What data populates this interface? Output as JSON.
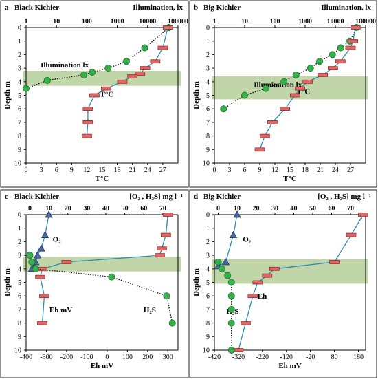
{
  "panels": [
    {
      "letter": "a",
      "name": "Black Kichier",
      "top_title": "Illumination, lx",
      "top_axis": {
        "type": "log",
        "min": 1,
        "max": 100000,
        "ticks": [
          1,
          10,
          100,
          1000,
          10000,
          100000
        ],
        "tick_labels": [
          "1",
          "10",
          "100",
          "1000",
          "10000",
          "100000"
        ]
      },
      "bottom_axis": {
        "label": "T°C",
        "min": 0,
        "max": 30,
        "ticks": [
          0,
          3,
          6,
          9,
          12,
          15,
          18,
          21,
          24,
          27
        ],
        "tick_labels": [
          "0",
          "3",
          "6",
          "9",
          "12",
          "15",
          "18",
          "21",
          "24",
          "27"
        ]
      },
      "y_axis": {
        "label": "Depth  m",
        "min": 0,
        "max": 10,
        "ticks": [
          0,
          1,
          2,
          3,
          4,
          5,
          6,
          7,
          8,
          9,
          10
        ]
      },
      "band": [
        3.2,
        4.3
      ],
      "annotations": [
        {
          "text": "Illumination lx",
          "x_top": 3,
          "y": 2.75
        },
        {
          "text": "T°C",
          "x_bottom": 14.6,
          "y": 4.9
        }
      ]
    },
    {
      "letter": "b",
      "name": "Big Kichier",
      "top_title": "Illumination,  lx",
      "top_axis": {
        "type": "log",
        "min": 1,
        "max": 100000,
        "ticks": [
          1,
          10,
          100,
          1000,
          10000,
          100000
        ],
        "tick_labels": [
          "1",
          "10",
          "100",
          "1000",
          "10000",
          "100000"
        ]
      },
      "bottom_axis": {
        "label": "T°C",
        "min": 0,
        "max": 30,
        "ticks": [
          0,
          3,
          6,
          9,
          12,
          15,
          18,
          21,
          24,
          27
        ],
        "tick_labels": [
          "0",
          "3",
          "6",
          "9",
          "12",
          "15",
          "18",
          "21",
          "24",
          "27"
        ]
      },
      "y_axis": {
        "label": "Depth  m",
        "min": 0,
        "max": 10,
        "ticks": [
          0,
          1,
          2,
          3,
          4,
          5,
          6,
          7,
          8,
          9,
          10
        ]
      },
      "band": [
        3.6,
        5.3
      ],
      "annotations": [
        {
          "text": "Illumination  lx",
          "x_top": 20,
          "y": 4.2
        },
        {
          "text": "T°C",
          "x_bottom": 16.3,
          "y": 4.7
        }
      ]
    },
    {
      "letter": "c",
      "name": "Black Kichier",
      "top_title": "[O₂ , H₂S]  mg l⁻¹",
      "top_axis": {
        "type": "linear",
        "min": -2,
        "max": 78,
        "ticks": [
          0,
          10,
          20,
          30,
          40,
          50,
          60,
          70
        ],
        "tick_labels": [
          "0",
          "10",
          "20",
          "30",
          "40",
          "50",
          "60",
          "70"
        ]
      },
      "bottom_axis": {
        "label": "Eh  mV",
        "min": -400,
        "max": 350,
        "ticks": [
          -400,
          -300,
          -200,
          -100,
          0,
          100,
          200,
          300
        ],
        "tick_labels": [
          "-400",
          "-300",
          "-200",
          "-100",
          "0",
          "100",
          "200",
          "300"
        ]
      },
      "y_axis": {
        "label": "Depth  m",
        "min": 0,
        "max": 10,
        "ticks": [
          0,
          1,
          2,
          3,
          4,
          5,
          6,
          7,
          8,
          9,
          10
        ]
      },
      "band": [
        3.1,
        4.2
      ],
      "annotations": [
        {
          "text": "O₂",
          "x_top": 12,
          "y": 1.8
        },
        {
          "text": "Eh   mV",
          "x_bottom": -285,
          "y": 7.0
        },
        {
          "text": "H₂S",
          "x_bottom": 180,
          "y": 7.0
        }
      ]
    },
    {
      "letter": "d",
      "name": "Big Kichier",
      "top_title": "[O₂ , H₂S]  mg l⁻¹",
      "top_axis": {
        "type": "linear",
        "min": -2,
        "max": 78,
        "ticks": [
          0,
          10,
          20,
          30,
          40,
          50,
          60,
          70
        ],
        "tick_labels": [
          "0",
          "10",
          "20",
          "30",
          "40",
          "50",
          "60",
          "70"
        ]
      },
      "bottom_axis": {
        "label": "Eh  mV",
        "min": -420,
        "max": 210,
        "ticks": [
          -420,
          -320,
          -220,
          -120,
          -20,
          80,
          180
        ],
        "tick_labels": [
          "-420",
          "-320",
          "-220",
          "-120",
          "-20",
          "80",
          "180"
        ]
      },
      "y_axis": {
        "label": "Depth  m",
        "min": 0,
        "max": 10,
        "ticks": [
          0,
          1,
          2,
          3,
          4,
          5,
          6,
          7,
          8,
          9,
          10
        ]
      },
      "band": [
        3.3,
        5.1
      ],
      "annotations": [
        {
          "text": "O₂",
          "x_top": 13,
          "y": 1.8
        },
        {
          "text": "Eh",
          "x_bottom": -240,
          "y": 6.0
        },
        {
          "text": "H₂S",
          "x_bottom": -370,
          "y": 7.1
        }
      ]
    }
  ],
  "chart_data": [
    {
      "type": "line",
      "panel": "a",
      "series": [
        {
          "marker": "circle",
          "axis": "top",
          "depth": [
            0,
            1.5,
            2.5,
            3,
            3.3,
            3.5,
            3.9,
            4.5
          ],
          "values": [
            50000,
            8000,
            2000,
            500,
            150,
            80,
            5,
            1
          ]
        },
        {
          "marker": "bar",
          "axis": "bottom",
          "depth": [
            0,
            1.5,
            2.5,
            3.0,
            3.4,
            3.6,
            4.0,
            4.5,
            5.0,
            6.0,
            7.0,
            8.0
          ],
          "values": [
            28,
            27,
            25.5,
            23.5,
            22.5,
            21,
            19,
            15.8,
            13.5,
            12.2,
            12.2,
            12.0
          ]
        }
      ]
    },
    {
      "type": "line",
      "panel": "b",
      "series": [
        {
          "marker": "circle",
          "axis": "top",
          "depth": [
            0,
            1,
            1.5,
            2,
            2.5,
            3,
            3.5,
            4,
            4.5,
            5,
            6
          ],
          "values": [
            50000,
            30000,
            15000,
            8000,
            3000,
            1500,
            500,
            200,
            50,
            10,
            2
          ]
        },
        {
          "marker": "bar",
          "axis": "bottom",
          "depth": [
            0,
            1,
            1.5,
            2.5,
            3,
            3.5,
            4,
            4.5,
            5,
            6,
            7,
            8,
            9
          ],
          "values": [
            28,
            27.5,
            27,
            25,
            23.5,
            21.5,
            18.5,
            17,
            16,
            14,
            11.5,
            10,
            9
          ]
        }
      ]
    },
    {
      "type": "line",
      "panel": "c",
      "series": [
        {
          "marker": "triangle",
          "axis": "top",
          "depth": [
            0,
            1.5,
            2.5,
            3,
            3.5,
            3.8,
            4
          ],
          "values": [
            10,
            8,
            6,
            4,
            3,
            2,
            1
          ]
        },
        {
          "marker": "bar",
          "axis": "bottom",
          "depth": [
            0,
            1.5,
            2.5,
            3,
            3.5,
            4,
            4.6,
            6,
            8
          ],
          "values": [
            300,
            290,
            270,
            260,
            -200,
            -320,
            -330,
            -310,
            -320
          ]
        },
        {
          "marker": "circle",
          "axis": "top",
          "depth": [
            3,
            3.5,
            4,
            4.6,
            6,
            8
          ],
          "values": [
            0,
            1,
            3,
            43,
            72,
            75
          ]
        }
      ]
    },
    {
      "type": "line",
      "panel": "d",
      "series": [
        {
          "marker": "triangle",
          "axis": "top",
          "depth": [
            0,
            1.5,
            3.5,
            3.8
          ],
          "values": [
            10,
            8,
            4,
            0
          ]
        },
        {
          "marker": "bar",
          "axis": "bottom",
          "depth": [
            0,
            1.5,
            3.5,
            4,
            4.5,
            5,
            6,
            8,
            10
          ],
          "values": [
            200,
            150,
            80,
            -170,
            -200,
            -240,
            -260,
            -290,
            -320
          ]
        },
        {
          "marker": "circle",
          "axis": "top",
          "depth": [
            3.5,
            4,
            4.5,
            5,
            6,
            7,
            8,
            10
          ],
          "values": [
            0,
            2,
            5,
            7,
            7,
            7,
            7,
            7
          ]
        }
      ]
    }
  ]
}
